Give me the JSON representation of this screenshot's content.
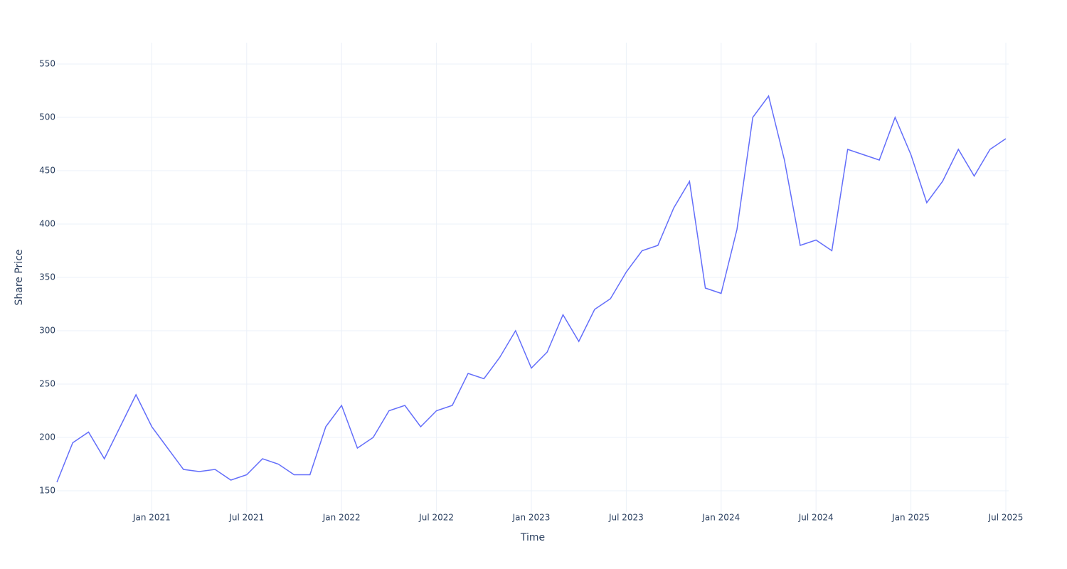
{
  "chart_data": {
    "type": "line",
    "x_label": "Time",
    "y_label": "Share Price",
    "x": [
      "2020-07",
      "2020-08",
      "2020-09",
      "2020-10",
      "2020-11",
      "2020-12",
      "2021-01",
      "2021-02",
      "2021-03",
      "2021-04",
      "2021-05",
      "2021-06",
      "2021-07",
      "2021-08",
      "2021-09",
      "2021-10",
      "2021-11",
      "2021-12",
      "2022-01",
      "2022-02",
      "2022-03",
      "2022-04",
      "2022-05",
      "2022-06",
      "2022-07",
      "2022-08",
      "2022-09",
      "2022-10",
      "2022-11",
      "2022-12",
      "2023-01",
      "2023-02",
      "2023-03",
      "2023-04",
      "2023-05",
      "2023-06",
      "2023-07",
      "2023-08",
      "2023-09",
      "2023-10",
      "2023-11",
      "2023-12",
      "2024-01",
      "2024-02",
      "2024-03",
      "2024-04",
      "2024-05",
      "2024-06",
      "2024-07",
      "2024-08",
      "2024-09",
      "2024-10",
      "2024-11",
      "2024-12",
      "2025-01",
      "2025-02",
      "2025-03",
      "2025-04",
      "2025-05",
      "2025-06",
      "2025-07"
    ],
    "series": [
      {
        "name": "Share Price",
        "color": "#636efa",
        "values": [
          158,
          195,
          205,
          180,
          210,
          240,
          210,
          190,
          170,
          168,
          170,
          160,
          165,
          180,
          175,
          165,
          165,
          210,
          230,
          190,
          200,
          225,
          230,
          210,
          225,
          230,
          260,
          255,
          275,
          300,
          265,
          280,
          315,
          290,
          320,
          330,
          355,
          375,
          380,
          415,
          440,
          340,
          335,
          395,
          500,
          520,
          460,
          380,
          385,
          375,
          470,
          465,
          460,
          500,
          465,
          420,
          440,
          470,
          445,
          470,
          480
        ]
      }
    ],
    "xlim": [
      "2020-07",
      "2025-07"
    ],
    "xticks": [
      {
        "value": "2021-01",
        "label": "Jan 2021"
      },
      {
        "value": "2021-07",
        "label": "Jul 2021"
      },
      {
        "value": "2022-01",
        "label": "Jan 2022"
      },
      {
        "value": "2022-07",
        "label": "Jul 2022"
      },
      {
        "value": "2023-01",
        "label": "Jan 2023"
      },
      {
        "value": "2023-07",
        "label": "Jul 2023"
      },
      {
        "value": "2024-01",
        "label": "Jan 2024"
      },
      {
        "value": "2024-07",
        "label": "Jul 2024"
      },
      {
        "value": "2025-01",
        "label": "Jan 2025"
      },
      {
        "value": "2025-07",
        "label": "Jul 2025"
      }
    ],
    "ylim": [
      130,
      570
    ],
    "yticks": [
      150,
      200,
      250,
      300,
      350,
      400,
      450,
      500,
      550
    ],
    "grid": true
  }
}
